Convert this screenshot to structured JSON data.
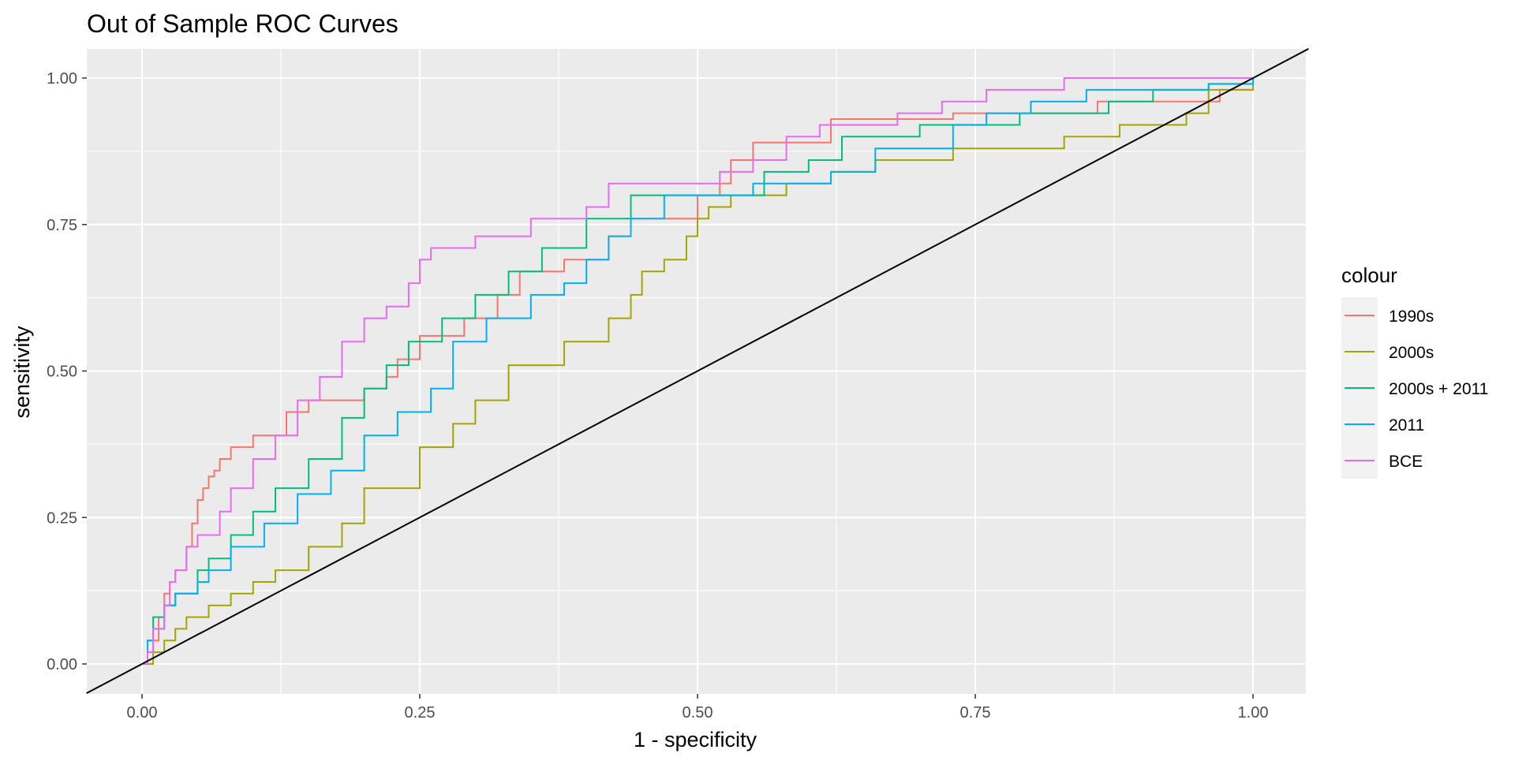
{
  "chart_data": {
    "type": "line",
    "title": "Out of Sample ROC Curves",
    "xlabel": "1 - specificity",
    "ylabel": "sensitivity",
    "xlim": [
      -0.05,
      1.05
    ],
    "ylim": [
      -0.05,
      1.05
    ],
    "x_ticks": [
      0.0,
      0.25,
      0.5,
      0.75,
      1.0
    ],
    "x_tick_labels": [
      "0.00",
      "0.25",
      "0.50",
      "0.75",
      "1.00"
    ],
    "y_ticks": [
      0.0,
      0.25,
      0.5,
      0.75,
      1.0
    ],
    "y_tick_labels": [
      "0.00",
      "0.25",
      "0.50",
      "0.75",
      "1.00"
    ],
    "grid": true,
    "background": "#ebebeb",
    "legend": {
      "title": "colour",
      "position": "right"
    },
    "reference_line": {
      "x": [
        -0.05,
        1.05
      ],
      "y": [
        -0.05,
        1.05
      ],
      "color": "#000000"
    },
    "series": [
      {
        "name": "1990s",
        "color": "#F8766D",
        "x": [
          0.0,
          0.005,
          0.01,
          0.015,
          0.02,
          0.025,
          0.03,
          0.04,
          0.045,
          0.05,
          0.055,
          0.06,
          0.065,
          0.07,
          0.08,
          0.1,
          0.13,
          0.15,
          0.2,
          0.22,
          0.23,
          0.25,
          0.29,
          0.32,
          0.34,
          0.38,
          0.42,
          0.44,
          0.5,
          0.52,
          0.53,
          0.55,
          0.62,
          0.73,
          0.86,
          0.97,
          1.0
        ],
        "y": [
          0.0,
          0.02,
          0.04,
          0.08,
          0.12,
          0.14,
          0.16,
          0.2,
          0.24,
          0.28,
          0.3,
          0.32,
          0.33,
          0.35,
          0.37,
          0.39,
          0.43,
          0.45,
          0.47,
          0.49,
          0.52,
          0.56,
          0.59,
          0.63,
          0.67,
          0.69,
          0.73,
          0.76,
          0.8,
          0.82,
          0.86,
          0.89,
          0.93,
          0.94,
          0.96,
          0.98,
          1.0
        ]
      },
      {
        "name": "2000s",
        "color": "#A3A500",
        "x": [
          0.0,
          0.01,
          0.02,
          0.03,
          0.04,
          0.06,
          0.08,
          0.1,
          0.12,
          0.15,
          0.18,
          0.2,
          0.25,
          0.28,
          0.3,
          0.33,
          0.38,
          0.42,
          0.44,
          0.45,
          0.47,
          0.49,
          0.5,
          0.51,
          0.53,
          0.58,
          0.62,
          0.66,
          0.73,
          0.83,
          0.88,
          0.94,
          0.96,
          1.0
        ],
        "y": [
          0.0,
          0.02,
          0.04,
          0.06,
          0.08,
          0.1,
          0.12,
          0.14,
          0.16,
          0.2,
          0.24,
          0.3,
          0.37,
          0.41,
          0.45,
          0.51,
          0.55,
          0.59,
          0.63,
          0.67,
          0.69,
          0.73,
          0.76,
          0.78,
          0.8,
          0.82,
          0.84,
          0.86,
          0.88,
          0.9,
          0.92,
          0.94,
          0.98,
          1.0
        ]
      },
      {
        "name": "2000s + 2011",
        "color": "#00BF7D",
        "x": [
          0.0,
          0.005,
          0.01,
          0.02,
          0.03,
          0.05,
          0.06,
          0.08,
          0.1,
          0.12,
          0.15,
          0.18,
          0.2,
          0.22,
          0.24,
          0.27,
          0.3,
          0.33,
          0.36,
          0.4,
          0.44,
          0.5,
          0.56,
          0.6,
          0.63,
          0.7,
          0.79,
          0.87,
          0.91,
          0.96,
          1.0
        ],
        "y": [
          0.0,
          0.04,
          0.08,
          0.1,
          0.12,
          0.16,
          0.18,
          0.22,
          0.26,
          0.3,
          0.35,
          0.42,
          0.47,
          0.51,
          0.55,
          0.59,
          0.63,
          0.67,
          0.71,
          0.76,
          0.8,
          0.8,
          0.84,
          0.86,
          0.9,
          0.92,
          0.94,
          0.96,
          0.98,
          0.99,
          1.0
        ]
      },
      {
        "name": "2011",
        "color": "#00B0F6",
        "x": [
          0.0,
          0.005,
          0.01,
          0.02,
          0.03,
          0.05,
          0.06,
          0.08,
          0.11,
          0.14,
          0.17,
          0.2,
          0.23,
          0.26,
          0.28,
          0.31,
          0.35,
          0.38,
          0.4,
          0.42,
          0.44,
          0.47,
          0.55,
          0.62,
          0.66,
          0.73,
          0.76,
          0.8,
          0.85,
          0.92,
          0.96,
          1.0
        ],
        "y": [
          0.0,
          0.04,
          0.06,
          0.1,
          0.12,
          0.14,
          0.16,
          0.2,
          0.24,
          0.29,
          0.33,
          0.39,
          0.43,
          0.47,
          0.55,
          0.59,
          0.63,
          0.65,
          0.69,
          0.73,
          0.76,
          0.8,
          0.82,
          0.84,
          0.88,
          0.92,
          0.94,
          0.96,
          0.98,
          0.98,
          0.99,
          1.0
        ]
      },
      {
        "name": "BCE",
        "color": "#E76BF3",
        "x": [
          0.0,
          0.005,
          0.01,
          0.02,
          0.025,
          0.03,
          0.04,
          0.05,
          0.07,
          0.08,
          0.1,
          0.12,
          0.14,
          0.16,
          0.18,
          0.2,
          0.22,
          0.24,
          0.25,
          0.26,
          0.3,
          0.35,
          0.4,
          0.42,
          0.52,
          0.55,
          0.58,
          0.61,
          0.68,
          0.72,
          0.76,
          0.83,
          0.9,
          1.0
        ],
        "y": [
          0.0,
          0.02,
          0.06,
          0.1,
          0.14,
          0.16,
          0.2,
          0.22,
          0.26,
          0.3,
          0.35,
          0.39,
          0.45,
          0.49,
          0.55,
          0.59,
          0.61,
          0.65,
          0.69,
          0.71,
          0.73,
          0.76,
          0.78,
          0.82,
          0.84,
          0.86,
          0.9,
          0.92,
          0.94,
          0.96,
          0.98,
          1.0,
          1.0,
          1.0
        ]
      }
    ]
  }
}
